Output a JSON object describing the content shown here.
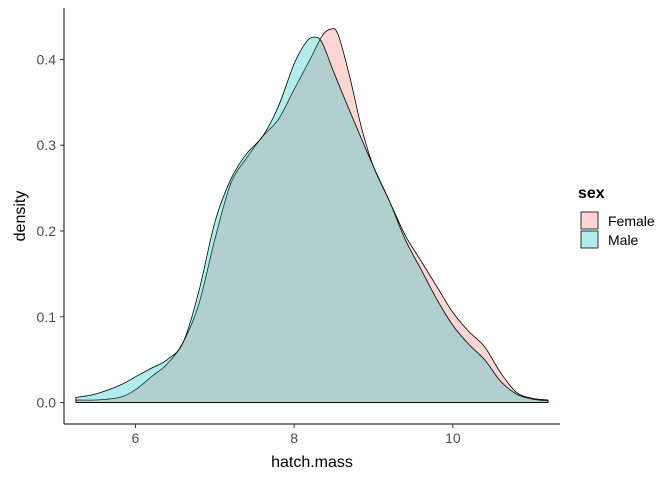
{
  "chart_data": {
    "type": "area",
    "subtype": "density",
    "title": "",
    "xlabel": "hatch.mass",
    "ylabel": "density",
    "xlim": [
      5.1,
      11.35
    ],
    "ylim": [
      -0.025,
      0.46
    ],
    "x_ticks": [
      6,
      8,
      10
    ],
    "x_tick_labels": [
      "6",
      "8",
      "10"
    ],
    "y_ticks": [
      0.0,
      0.1,
      0.2,
      0.3,
      0.4
    ],
    "y_tick_labels": [
      "0.0",
      "0.1",
      "0.2",
      "0.3",
      "0.4"
    ],
    "grid": false,
    "legend": {
      "title": "sex",
      "position": "right"
    },
    "series": [
      {
        "name": "Female",
        "color": "#F8766D",
        "x": [
          5.25,
          5.5,
          5.8,
          6.0,
          6.2,
          6.4,
          6.6,
          6.8,
          7.0,
          7.2,
          7.4,
          7.6,
          7.8,
          8.0,
          8.2,
          8.35,
          8.45,
          8.55,
          8.7,
          8.85,
          9.0,
          9.2,
          9.4,
          9.6,
          9.8,
          10.0,
          10.2,
          10.4,
          10.6,
          10.8,
          11.0,
          11.2
        ],
        "y": [
          0.003,
          0.003,
          0.006,
          0.015,
          0.03,
          0.045,
          0.07,
          0.115,
          0.19,
          0.255,
          0.285,
          0.31,
          0.33,
          0.365,
          0.4,
          0.427,
          0.435,
          0.43,
          0.38,
          0.32,
          0.275,
          0.235,
          0.195,
          0.165,
          0.135,
          0.105,
          0.083,
          0.065,
          0.035,
          0.012,
          0.005,
          0.003
        ]
      },
      {
        "name": "Male",
        "color": "#00BFC4",
        "x": [
          5.25,
          5.5,
          5.8,
          6.0,
          6.2,
          6.4,
          6.6,
          6.8,
          7.0,
          7.2,
          7.4,
          7.6,
          7.8,
          8.0,
          8.15,
          8.25,
          8.35,
          8.5,
          8.7,
          9.0,
          9.2,
          9.4,
          9.6,
          9.8,
          10.0,
          10.2,
          10.4,
          10.6,
          10.8,
          11.0,
          11.2
        ],
        "y": [
          0.006,
          0.01,
          0.02,
          0.03,
          0.04,
          0.05,
          0.07,
          0.13,
          0.21,
          0.26,
          0.29,
          0.31,
          0.345,
          0.395,
          0.42,
          0.426,
          0.42,
          0.385,
          0.34,
          0.275,
          0.235,
          0.19,
          0.155,
          0.12,
          0.09,
          0.068,
          0.05,
          0.025,
          0.01,
          0.004,
          0.002
        ]
      }
    ]
  }
}
